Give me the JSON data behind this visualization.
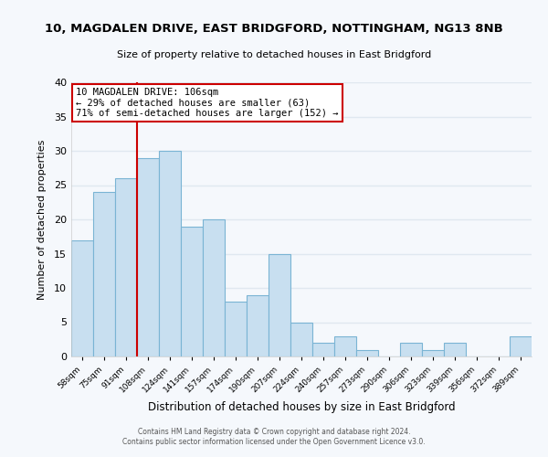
{
  "title": "10, MAGDALEN DRIVE, EAST BRIDGFORD, NOTTINGHAM, NG13 8NB",
  "subtitle": "Size of property relative to detached houses in East Bridgford",
  "xlabel": "Distribution of detached houses by size in East Bridgford",
  "ylabel": "Number of detached properties",
  "bar_color": "#c8dff0",
  "bar_edge_color": "#7ab4d4",
  "categories": [
    "58sqm",
    "75sqm",
    "91sqm",
    "108sqm",
    "124sqm",
    "141sqm",
    "157sqm",
    "174sqm",
    "190sqm",
    "207sqm",
    "224sqm",
    "240sqm",
    "257sqm",
    "273sqm",
    "290sqm",
    "306sqm",
    "323sqm",
    "339sqm",
    "356sqm",
    "372sqm",
    "389sqm"
  ],
  "values": [
    17,
    24,
    26,
    29,
    30,
    19,
    20,
    8,
    9,
    15,
    5,
    2,
    3,
    1,
    0,
    2,
    1,
    2,
    0,
    0,
    3
  ],
  "ylim": [
    0,
    40
  ],
  "yticks": [
    0,
    5,
    10,
    15,
    20,
    25,
    30,
    35,
    40
  ],
  "vline_index": 3,
  "vline_color": "#cc0000",
  "annotation_title": "10 MAGDALEN DRIVE: 106sqm",
  "annotation_line1": "← 29% of detached houses are smaller (63)",
  "annotation_line2": "71% of semi-detached houses are larger (152) →",
  "annotation_box_color": "#ffffff",
  "annotation_box_edge": "#cc0000",
  "footer1": "Contains HM Land Registry data © Crown copyright and database right 2024.",
  "footer2": "Contains public sector information licensed under the Open Government Licence v3.0.",
  "bg_color": "#f5f8fc",
  "grid_color": "#e0e8f0"
}
